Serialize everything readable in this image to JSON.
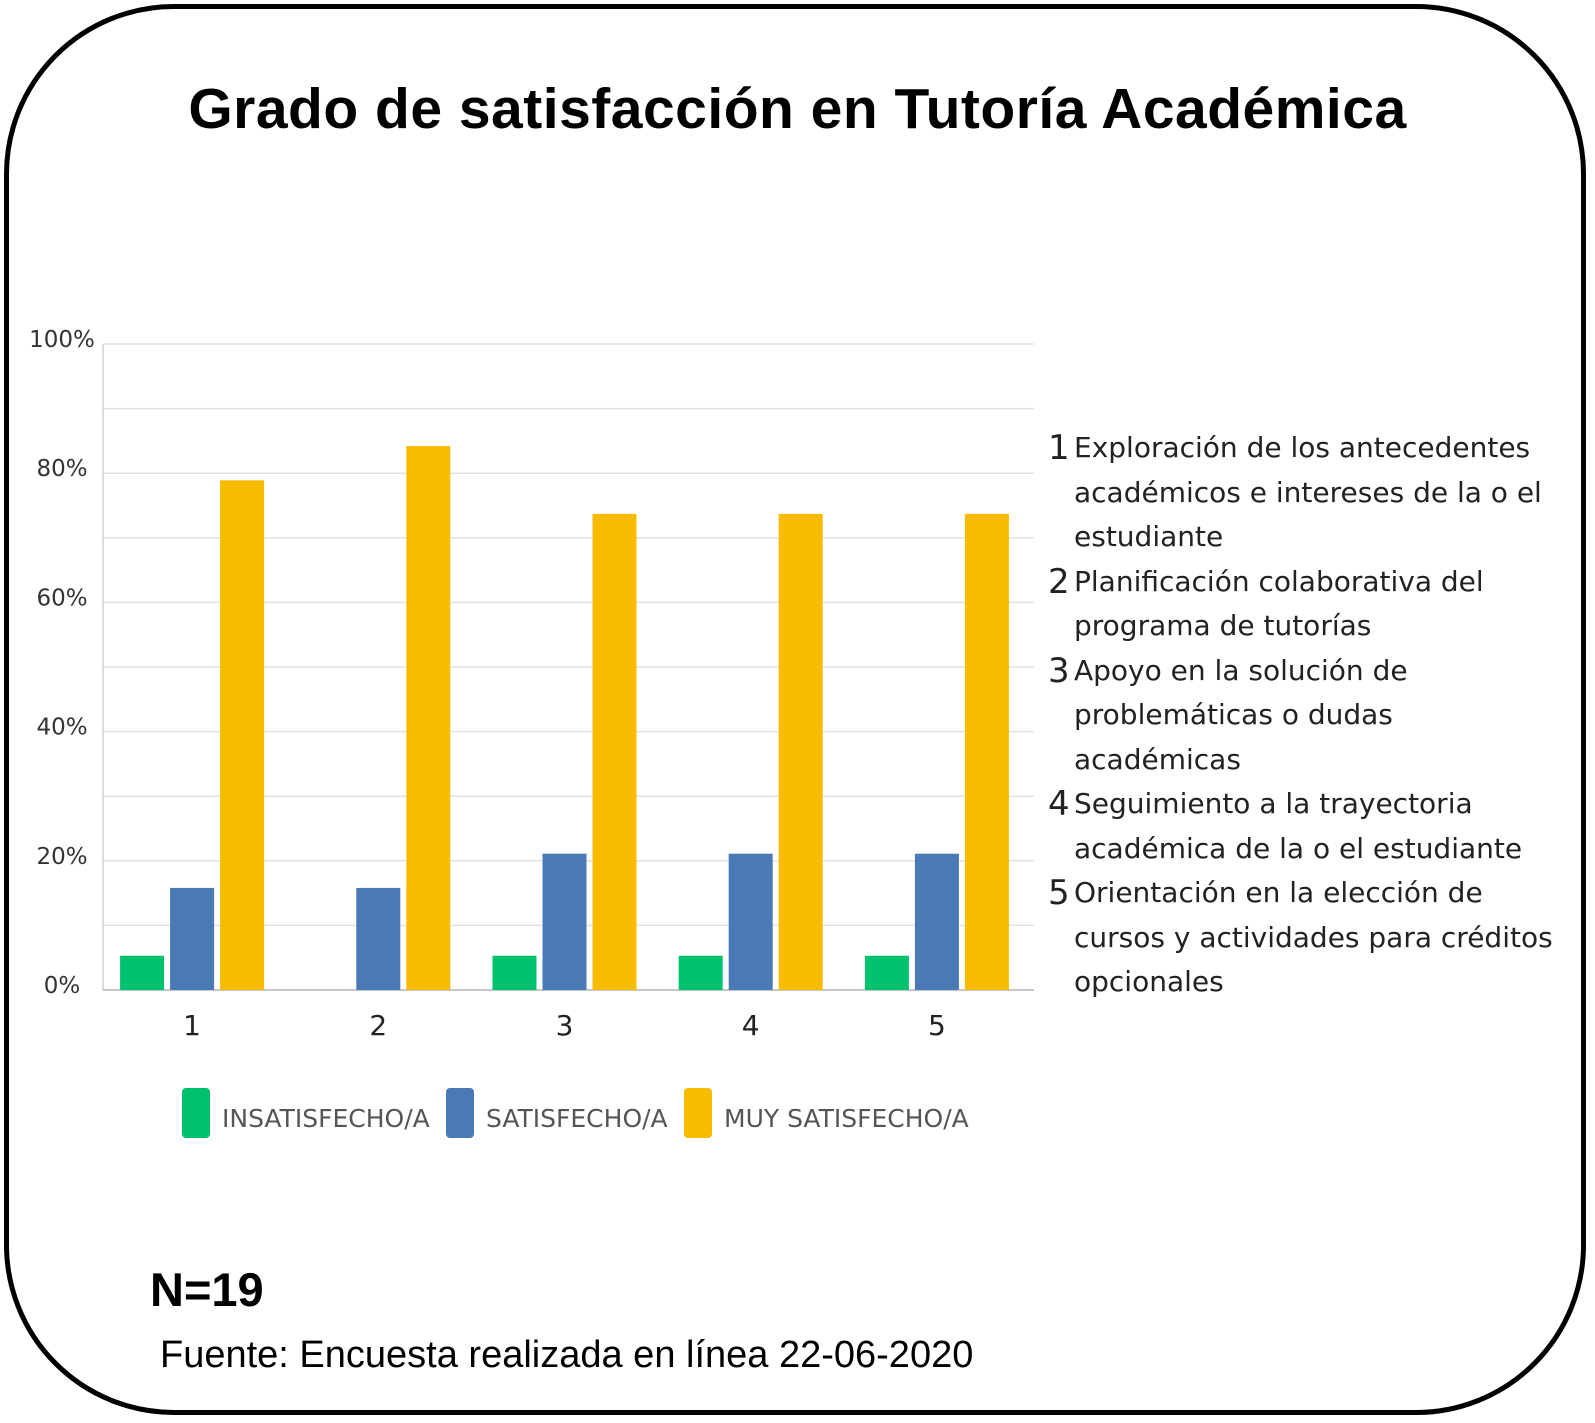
{
  "title": "Grado de satisfacción en Tutoría Académica",
  "n_label": "N=19",
  "source": "Fuente: Encuesta realizada en línea 22-06-2020",
  "chart_data": {
    "type": "bar",
    "categories": [
      "1",
      "2",
      "3",
      "4",
      "5"
    ],
    "y_ticks": [
      "0%",
      "20%",
      "40%",
      "60%",
      "80%",
      "100%"
    ],
    "ylim": [
      0,
      100
    ],
    "grid": true,
    "legend_position": "bottom",
    "series": [
      {
        "name": "INSATISFECHO/A",
        "color": "#00c16e",
        "values": [
          5.3,
          0,
          5.3,
          5.3,
          5.3
        ]
      },
      {
        "name": "SATISFECHO/A",
        "color": "#4a7ab5",
        "values": [
          15.8,
          15.8,
          21.1,
          21.1,
          21.1
        ]
      },
      {
        "name": "MUY SATISFECHO/A",
        "color": "#f7bb00",
        "values": [
          78.9,
          84.2,
          73.7,
          73.7,
          73.7
        ]
      }
    ]
  },
  "annotations": [
    {
      "num": "1",
      "lines": [
        "Exploración de los antecedentes",
        "académicos e intereses de la o el",
        "estudiante"
      ]
    },
    {
      "num": "2",
      "lines": [
        "Planificación colaborativa del",
        "programa de tutorías"
      ]
    },
    {
      "num": "3",
      "lines": [
        "Apoyo en la solución de",
        "problemáticas o dudas",
        "académicas"
      ]
    },
    {
      "num": "4",
      "lines": [
        "Seguimiento a la trayectoria",
        "académica de la o el estudiante"
      ]
    },
    {
      "num": "5",
      "lines": [
        "Orientación en la elección de",
        "cursos y actividades para créditos",
        "opcionales"
      ]
    }
  ]
}
